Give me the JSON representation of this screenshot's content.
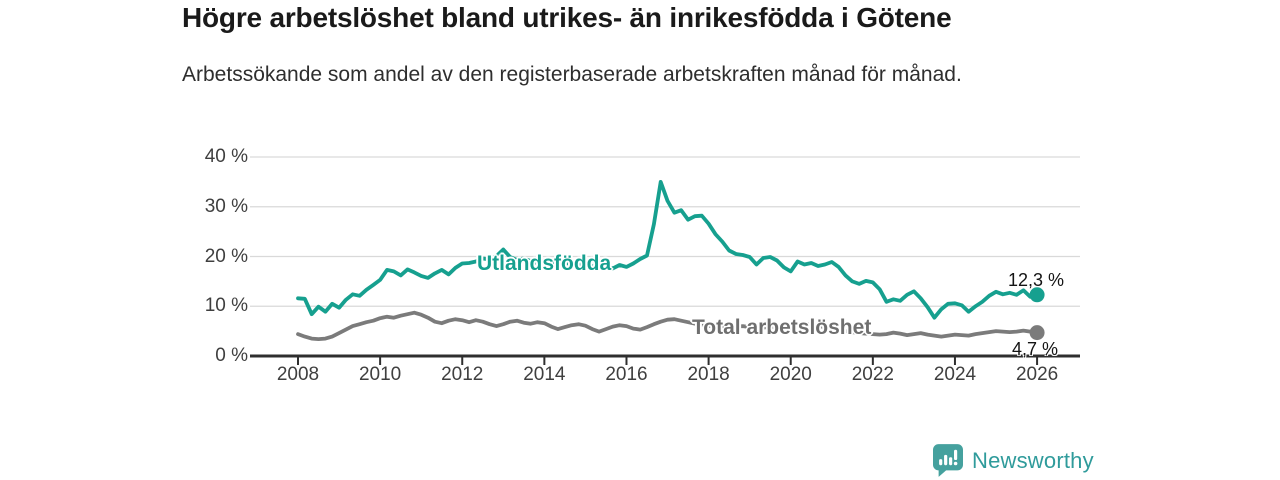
{
  "header": {
    "title": "Högre arbetslöshet bland utrikes- än inrikesfödda i Götene",
    "subtitle": "Arbetssökande som andel av den registerbaserade arbetskraften månad för månad."
  },
  "colors": {
    "utlandsfodda_line": "#16a08f",
    "total_line": "#7b7b7b",
    "gridline": "#d9d9d9",
    "axis": "#2f2f2f",
    "brand_teal": "#45a19e"
  },
  "chart_data": {
    "type": "line",
    "title": "Högre arbetslöshet bland utrikes- än inrikesfödda i Götene",
    "xlabel": "",
    "ylabel": "",
    "ylim": [
      0,
      40
    ],
    "grid": "horizontal",
    "legend_position": "inline-labels",
    "x_axis": {
      "tick_values": [
        2008,
        2010,
        2012,
        2014,
        2016,
        2018,
        2020,
        2022,
        2024,
        2026
      ],
      "tick_labels": [
        "2008",
        "2010",
        "2012",
        "2014",
        "2016",
        "2018",
        "2020",
        "2022",
        "2024",
        "2026"
      ]
    },
    "y_axis": {
      "tick_values": [
        40,
        30,
        20,
        10,
        0
      ],
      "tick_labels": [
        "40 %",
        "30 %",
        "20 %",
        "10 %",
        "0 %"
      ]
    },
    "x_start": 2008,
    "x_step": 0.166667,
    "series": [
      {
        "name": "Utlandsfödda",
        "color": "#16a08f",
        "end_label": "12,3 %",
        "end_value": 12.3,
        "values": [
          11.6,
          11.5,
          8.4,
          9.9,
          8.9,
          10.5,
          9.7,
          11.3,
          12.4,
          12.1,
          13.3,
          14.3,
          15.3,
          17.3,
          17.0,
          16.2,
          17.4,
          16.8,
          16.1,
          15.7,
          16.6,
          17.3,
          16.4,
          17.7,
          18.6,
          18.7,
          19.0,
          19.6,
          19.4,
          20.1,
          21.4,
          19.9,
          19.3,
          19.6,
          19.1,
          18.7,
          19.2,
          18.8,
          19.0,
          18.5,
          18.9,
          18.3,
          18.6,
          18.1,
          18.4,
          17.9,
          17.6,
          18.3,
          17.9,
          18.6,
          19.5,
          20.2,
          26.5,
          35.0,
          31.2,
          28.8,
          29.3,
          27.4,
          28.1,
          28.2,
          26.6,
          24.5,
          23.0,
          21.2,
          20.5,
          20.3,
          19.9,
          18.4,
          19.7,
          19.9,
          19.2,
          17.8,
          17.0,
          19.0,
          18.4,
          18.7,
          18.1,
          18.4,
          18.9,
          17.9,
          16.2,
          15.0,
          14.5,
          15.1,
          14.8,
          13.4,
          10.9,
          11.4,
          11.1,
          12.3,
          13.0,
          11.6,
          9.8,
          7.7,
          9.4,
          10.5,
          10.6,
          10.2,
          8.9,
          10.0,
          10.9,
          12.1,
          12.9,
          12.4,
          12.7,
          12.3,
          13.2,
          11.9,
          12.3
        ]
      },
      {
        "name": "Total arbetslöshet",
        "color": "#7b7b7b",
        "end_label": "4,7 %",
        "end_value": 4.7,
        "values": [
          4.4,
          3.9,
          3.5,
          3.4,
          3.5,
          3.9,
          4.6,
          5.3,
          6.0,
          6.4,
          6.8,
          7.1,
          7.6,
          7.9,
          7.7,
          8.1,
          8.4,
          8.7,
          8.3,
          7.7,
          6.9,
          6.6,
          7.1,
          7.4,
          7.2,
          6.8,
          7.2,
          6.9,
          6.4,
          6.0,
          6.4,
          6.9,
          7.1,
          6.7,
          6.5,
          6.8,
          6.6,
          5.9,
          5.4,
          5.8,
          6.2,
          6.4,
          6.1,
          5.4,
          4.9,
          5.4,
          5.9,
          6.2,
          6.0,
          5.5,
          5.3,
          5.8,
          6.4,
          6.9,
          7.3,
          7.4,
          7.1,
          6.8,
          6.5,
          6.3,
          6.1,
          5.9,
          5.8,
          5.7,
          5.9,
          6.0,
          5.8,
          5.6,
          5.7,
          5.9,
          5.8,
          5.6,
          5.6,
          6.3,
          6.5,
          6.2,
          6.0,
          5.8,
          5.6,
          5.3,
          5.0,
          4.8,
          4.6,
          4.5,
          4.4,
          4.3,
          4.4,
          4.7,
          4.5,
          4.2,
          4.4,
          4.6,
          4.3,
          4.1,
          3.9,
          4.1,
          4.3,
          4.2,
          4.1,
          4.4,
          4.6,
          4.8,
          5.0,
          4.9,
          4.8,
          4.9,
          5.1,
          4.9,
          4.7
        ]
      }
    ]
  },
  "branding": {
    "logo_text": "Newsworthy"
  }
}
